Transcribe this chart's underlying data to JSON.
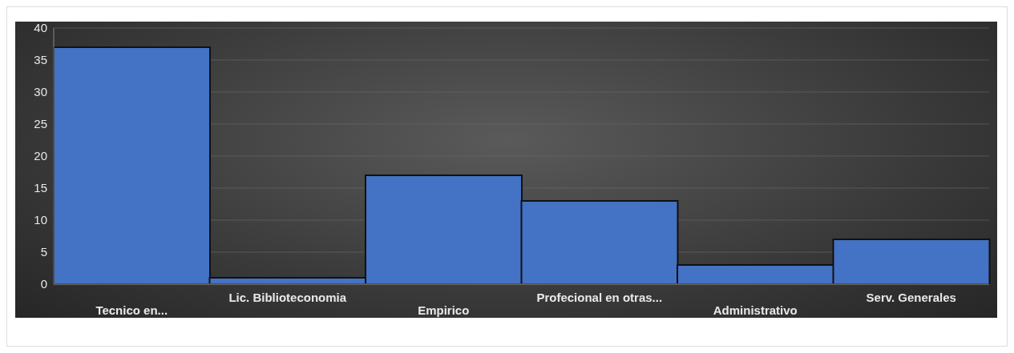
{
  "chart_data": {
    "type": "bar",
    "categories": [
      "Tecnico en...",
      "Lic. Biblioteconomia",
      "Empirico",
      "Profecional en otras...",
      "Administrativo",
      "Serv. Generales"
    ],
    "values": [
      37,
      1,
      17,
      13,
      3,
      7
    ],
    "color": "#4472c4",
    "ylim": [
      0,
      40
    ],
    "yticks": [
      0,
      5,
      10,
      15,
      20,
      25,
      30,
      35,
      40
    ],
    "grid": "y"
  }
}
